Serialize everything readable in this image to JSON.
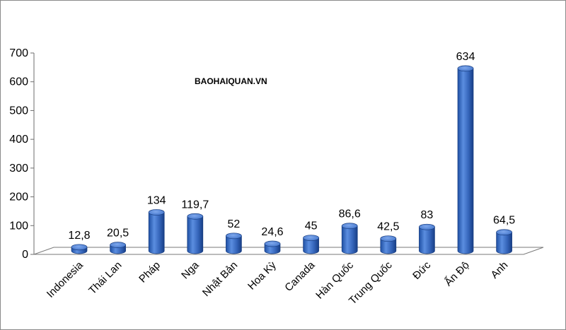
{
  "chart_data": {
    "type": "bar",
    "categories": [
      "Indonesia",
      "Thái Lan",
      "Pháp",
      "Nga",
      "Nhật Bản",
      "Hoa Kỳ",
      "Canada",
      "Hàn Quốc",
      "Trung Quốc",
      "Đức",
      "Ấn Độ",
      "Anh"
    ],
    "values": [
      12.8,
      20.5,
      134,
      119.7,
      52,
      24.6,
      45,
      86.6,
      42.5,
      83,
      634,
      64.5
    ],
    "data_labels": [
      "12,8",
      "20,5",
      "134",
      "119,7",
      "52",
      "24,6",
      "45",
      "86,6",
      "42,5",
      "83",
      "634",
      "64,5"
    ],
    "ylim": [
      0,
      700
    ],
    "yticks": [
      0,
      100,
      200,
      300,
      400,
      500,
      600,
      700
    ],
    "grid": false,
    "style": "3d-cylinder",
    "bar_color": "#3b70c8",
    "annotation": "BAOHAIQUAN.VN",
    "title": "",
    "xlabel": "",
    "ylabel": ""
  }
}
